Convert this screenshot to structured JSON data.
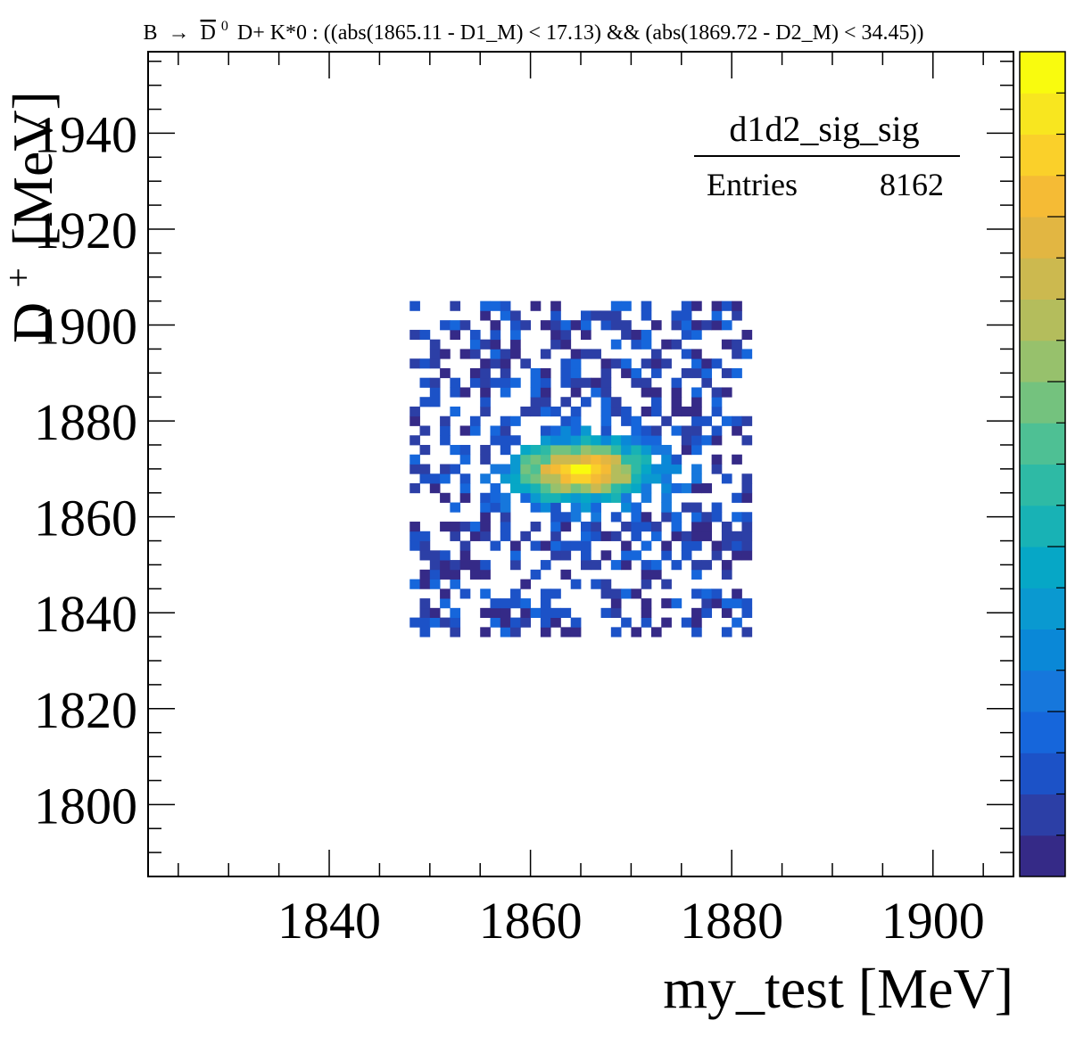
{
  "chart_data": {
    "type": "heatmap",
    "title_prefix": "B",
    "title_arrow": "→",
    "title_dbar": "D",
    "title_dbar_sup": "0",
    "title_rest": "D+ K*0 : ((abs(1865.11 - D1_M) < 17.13) && (abs(1869.72 - D2_M) < 34.45))",
    "xlabel": "my_test [MeV]",
    "ylabel_main": "D",
    "ylabel_sup": "+",
    "ylabel_unit": "[MeV]",
    "xlim": [
      1822,
      1908
    ],
    "ylim": [
      1785,
      1957
    ],
    "xticks": [
      1840,
      1860,
      1880,
      1900
    ],
    "yticks": [
      1800,
      1820,
      1840,
      1860,
      1880,
      1900,
      1920,
      1940
    ],
    "stats": {
      "name": "d1d2_sig_sig",
      "entries_label": "Entries",
      "entries": "8162"
    },
    "signal_region": {
      "x": [
        1848,
        1882
      ],
      "y": [
        1835,
        1904
      ]
    },
    "peak": {
      "x": 1865.11,
      "y": 1869.72
    },
    "colormap": [
      "#352a87",
      "#2c3fa6",
      "#1c52c7",
      "#1666db",
      "#1677dc",
      "#0a88d7",
      "#0a99d0",
      "#06a7c6",
      "#18b2b5",
      "#2ebaa5",
      "#4ec094",
      "#74c27e",
      "#97c16c",
      "#b4bd5c",
      "#ccb94f",
      "#e2b642",
      "#f5bb35",
      "#fad02a",
      "#f8e61f",
      "#f9fb0e"
    ],
    "zlim": [
      0,
      1
    ]
  }
}
